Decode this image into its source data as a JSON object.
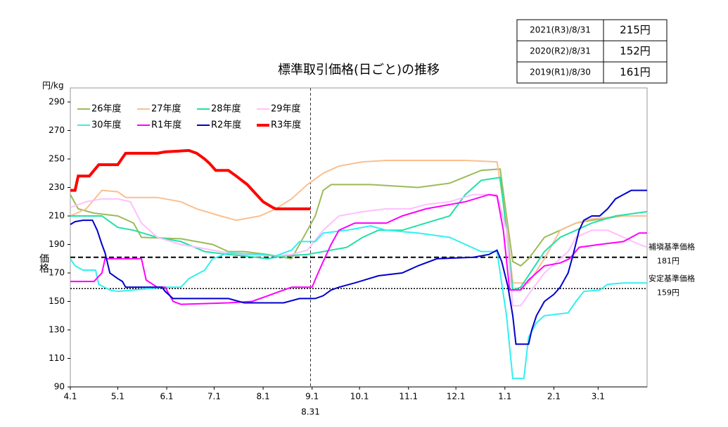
{
  "chart_data": {
    "type": "line",
    "title": "標準取引価格(日ごと)の推移",
    "y_unit": "円/kg",
    "y_label": "価格",
    "xlim": [
      0,
      365
    ],
    "xticks": [
      {
        "value": 0,
        "label": "4.1"
      },
      {
        "value": 30,
        "label": "5.1"
      },
      {
        "value": 61,
        "label": "6.1"
      },
      {
        "value": 91,
        "label": "7.1"
      },
      {
        "value": 122,
        "label": "8.1"
      },
      {
        "value": 153,
        "label": "9.1"
      },
      {
        "value": 183,
        "label": "10.1"
      },
      {
        "value": 214,
        "label": "11.1"
      },
      {
        "value": 244,
        "label": "12.1"
      },
      {
        "value": 275,
        "label": "1.1"
      },
      {
        "value": 306,
        "label": "2.1"
      },
      {
        "value": 334,
        "label": "3.1"
      }
    ],
    "ylim": [
      90,
      290
    ],
    "yticks": [
      90,
      110,
      130,
      150,
      170,
      190,
      210,
      230,
      250,
      270,
      290
    ],
    "marker": {
      "x": 152,
      "label": "8.31"
    },
    "reference_lines": [
      {
        "value": 181,
        "label": "補塡基準価格",
        "value_label": "181円",
        "style": "dashed"
      },
      {
        "value": 159,
        "label": "安定基準価格",
        "value_label": "159円",
        "style": "dotted"
      }
    ],
    "series": [
      {
        "name": "26年度",
        "color": "#9bbb59",
        "x": [
          0,
          5,
          15,
          30,
          40,
          45,
          70,
          90,
          100,
          110,
          125,
          140,
          150,
          155,
          160,
          165,
          190,
          220,
          240,
          260,
          272,
          276,
          280,
          285,
          290,
          300,
          310,
          320,
          330,
          350,
          365
        ],
        "values": [
          225,
          215,
          212,
          210,
          205,
          195,
          194,
          190,
          185,
          185,
          183,
          180,
          200,
          210,
          228,
          232,
          232,
          230,
          233,
          242,
          243,
          210,
          178,
          175,
          180,
          195,
          200,
          205,
          207,
          210,
          210
        ]
      },
      {
        "name": "27年度",
        "color": "#fac090",
        "x": [
          0,
          10,
          20,
          30,
          35,
          55,
          70,
          80,
          95,
          105,
          120,
          130,
          140,
          150,
          160,
          170,
          185,
          200,
          250,
          270,
          276,
          280,
          290,
          300,
          310,
          320,
          330,
          350,
          365
        ],
        "values": [
          210,
          215,
          228,
          227,
          223,
          223,
          220,
          215,
          210,
          207,
          210,
          215,
          222,
          232,
          240,
          245,
          248,
          249,
          249,
          248,
          205,
          163,
          163,
          180,
          200,
          205,
          208,
          210,
          210
        ]
      },
      {
        "name": "28年度",
        "color": "#22e0a8",
        "x": [
          0,
          20,
          30,
          40,
          55,
          70,
          85,
          100,
          110,
          125,
          135,
          150,
          160,
          175,
          185,
          195,
          210,
          225,
          240,
          250,
          260,
          272,
          276,
          280,
          285,
          300,
          310,
          320,
          330,
          345,
          365
        ],
        "values": [
          210,
          210,
          202,
          200,
          195,
          192,
          185,
          183,
          182,
          180,
          182,
          183,
          185,
          188,
          195,
          200,
          200,
          205,
          210,
          225,
          235,
          237,
          200,
          158,
          160,
          185,
          195,
          200,
          205,
          210,
          213
        ]
      },
      {
        "name": "29年度",
        "color": "#ffbfff",
        "x": [
          0,
          10,
          20,
          30,
          38,
          45,
          55,
          70,
          95,
          110,
          130,
          140,
          150,
          160,
          170,
          185,
          200,
          215,
          225,
          240,
          255,
          270,
          276,
          280,
          285,
          290,
          300,
          315,
          320,
          330,
          340,
          350,
          360,
          365
        ],
        "values": [
          216,
          220,
          222,
          222,
          220,
          205,
          195,
          190,
          185,
          183,
          182,
          183,
          186,
          200,
          210,
          213,
          215,
          215,
          218,
          220,
          225,
          225,
          200,
          147,
          147,
          155,
          170,
          185,
          195,
          200,
          200,
          195,
          190,
          188
        ]
      },
      {
        "name": "30年度",
        "color": "#33f0f0",
        "x": [
          0,
          3,
          8,
          16,
          18,
          25,
          30,
          60,
          70,
          75,
          85,
          90,
          100,
          120,
          130,
          140,
          145,
          155,
          160,
          175,
          190,
          200,
          220,
          240,
          260,
          270,
          276,
          280,
          287,
          290,
          295,
          300,
          315,
          320,
          325,
          335,
          340,
          350,
          365
        ],
        "values": [
          180,
          175,
          172,
          172,
          162,
          158,
          157,
          160,
          160,
          166,
          172,
          180,
          184,
          183,
          182,
          186,
          192,
          192,
          198,
          200,
          203,
          200,
          198,
          195,
          185,
          185,
          140,
          96,
          96,
          125,
          135,
          140,
          142,
          150,
          157,
          158,
          162,
          163,
          163
        ]
      },
      {
        "name": "R1年度",
        "color": "#ff00ff",
        "x": [
          0,
          15,
          20,
          22,
          35,
          45,
          48,
          55,
          60,
          65,
          70,
          100,
          115,
          125,
          135,
          140,
          153,
          156,
          160,
          165,
          170,
          180,
          200,
          210,
          225,
          240,
          250,
          265,
          270,
          274,
          278,
          285,
          290,
          300,
          310,
          316,
          322,
          335,
          350,
          360,
          365
        ],
        "values": [
          164,
          164,
          170,
          180,
          180,
          180,
          165,
          160,
          160,
          150,
          148,
          149,
          150,
          154,
          158,
          160,
          160,
          168,
          178,
          190,
          200,
          205,
          205,
          210,
          215,
          218,
          220,
          225,
          224,
          200,
          158,
          158,
          165,
          175,
          177,
          180,
          188,
          190,
          192,
          198,
          198
        ]
      },
      {
        "name": "R2年度",
        "color": "#0000cc",
        "x": [
          0,
          3,
          8,
          14,
          17,
          20,
          22,
          25,
          30,
          33,
          35,
          58,
          60,
          65,
          100,
          110,
          135,
          145,
          155,
          160,
          165,
          170,
          180,
          195,
          210,
          220,
          232,
          255,
          265,
          270,
          273,
          277,
          280,
          282,
          290,
          292,
          295,
          300,
          306,
          310,
          315,
          318,
          322,
          325,
          330,
          335,
          340,
          345,
          355,
          365
        ],
        "values": [
          204,
          206,
          207,
          207,
          200,
          190,
          184,
          170,
          166,
          164,
          160,
          160,
          157,
          152,
          152,
          149,
          149,
          152,
          152,
          154,
          158,
          160,
          163,
          168,
          170,
          175,
          180,
          181,
          183,
          186,
          178,
          160,
          140,
          120,
          120,
          130,
          140,
          150,
          155,
          160,
          170,
          182,
          200,
          207,
          210,
          210,
          215,
          222,
          228,
          228
        ]
      },
      {
        "name": "R3年度",
        "color": "#ff0000",
        "emphasis": true,
        "x": [
          0,
          3,
          5,
          12,
          15,
          18,
          30,
          35,
          55,
          60,
          75,
          80,
          85,
          88,
          92,
          100,
          105,
          112,
          117,
          122,
          128,
          130,
          152
        ],
        "values": [
          228,
          228,
          238,
          238,
          242,
          246,
          246,
          254,
          254,
          255,
          256,
          254,
          250,
          247,
          242,
          242,
          238,
          232,
          226,
          220,
          216,
          215,
          215
        ]
      }
    ]
  },
  "price_table": {
    "rows": [
      [
        "2021(R3)/8/31",
        "215円"
      ],
      [
        "2020(R2)/8/31",
        "152円"
      ],
      [
        "2019(R1)/8/30",
        "161円"
      ]
    ]
  }
}
